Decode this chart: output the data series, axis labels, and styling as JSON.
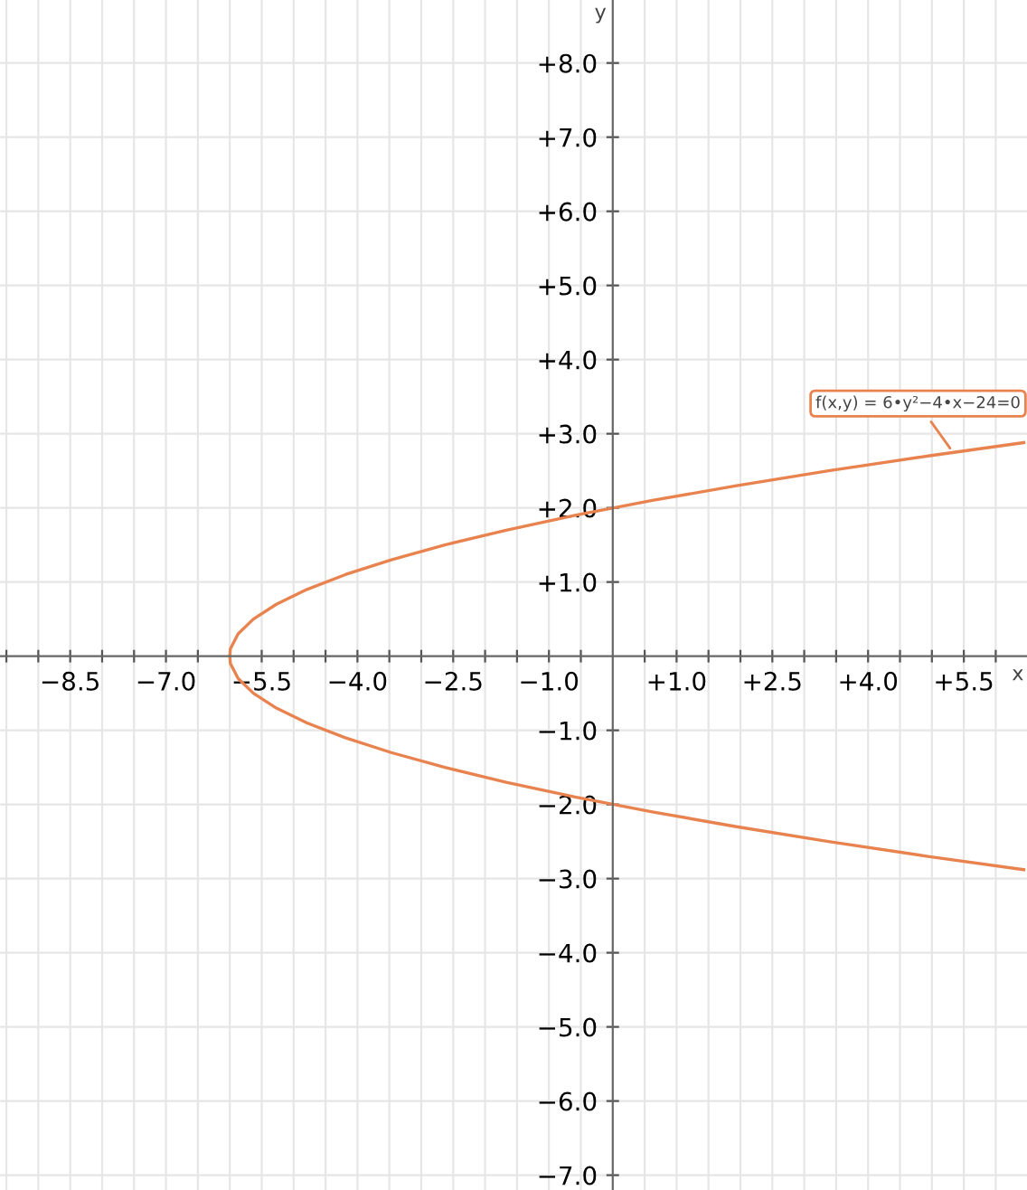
{
  "chart_data": {
    "type": "line",
    "xlabel": "x",
    "ylabel": "y",
    "series": [
      {
        "color": "#e8834f",
        "x": [
          6.44,
          4.94,
          3.38,
          1.94,
          0.62,
          -0.59,
          -1.67,
          -2.63,
          -3.47,
          -4.19,
          -4.79,
          -5.27,
          -5.63,
          -5.87,
          -5.99,
          -6,
          -5.99,
          -5.87,
          -5.63,
          -5.27,
          -4.79,
          -4.19,
          -3.47,
          -2.63,
          -1.67,
          -0.59,
          0.62,
          1.94,
          3.38,
          4.94,
          6.44
        ],
        "values": [
          -2.88,
          -2.7,
          -2.5,
          -2.3,
          -2.1,
          -1.9,
          -1.7,
          -1.5,
          -1.3,
          -1.1,
          -0.9,
          -0.7,
          -0.5,
          -0.3,
          -0.1,
          0,
          0.1,
          0.3,
          0.5,
          0.7,
          0.9,
          1.1,
          1.3,
          1.5,
          1.7,
          1.9,
          2.1,
          2.3,
          2.5,
          2.7,
          2.88
        ]
      }
    ],
    "annotations": [
      {
        "text": "f(x,y) = 6•y²−4•x−24=0",
        "x": 5.33,
        "y": 2.75
      }
    ],
    "xlim": [
      -9.6,
      6.49
    ],
    "ylim": [
      -7.2,
      8.85
    ],
    "xticks": [
      {
        "value": -9.5,
        "label": null
      },
      {
        "value": -9,
        "label": null
      },
      {
        "value": -8.5,
        "label": "−8.5"
      },
      {
        "value": -8,
        "label": null
      },
      {
        "value": -7.5,
        "label": null
      },
      {
        "value": -7,
        "label": "−7.0"
      },
      {
        "value": -6.5,
        "label": null
      },
      {
        "value": -6,
        "label": null
      },
      {
        "value": -5.5,
        "label": "−5.5"
      },
      {
        "value": -5,
        "label": null
      },
      {
        "value": -4.5,
        "label": null
      },
      {
        "value": -4,
        "label": "−4.0"
      },
      {
        "value": -3.5,
        "label": null
      },
      {
        "value": -3,
        "label": null
      },
      {
        "value": -2.5,
        "label": "−2.5"
      },
      {
        "value": -2,
        "label": null
      },
      {
        "value": -1.5,
        "label": null
      },
      {
        "value": -1,
        "label": "−1.0"
      },
      {
        "value": -0.5,
        "label": null
      },
      {
        "value": 0.5,
        "label": null
      },
      {
        "value": 1,
        "label": "+1.0"
      },
      {
        "value": 1.5,
        "label": null
      },
      {
        "value": 2,
        "label": null
      },
      {
        "value": 2.5,
        "label": "+2.5"
      },
      {
        "value": 3,
        "label": null
      },
      {
        "value": 3.5,
        "label": null
      },
      {
        "value": 4,
        "label": "+4.0"
      },
      {
        "value": 4.5,
        "label": null
      },
      {
        "value": 5,
        "label": null
      },
      {
        "value": 5.5,
        "label": "+5.5"
      },
      {
        "value": 6,
        "label": null
      }
    ],
    "yticks": [
      {
        "value": -7,
        "label": "−7.0"
      },
      {
        "value": -6,
        "label": "−6.0"
      },
      {
        "value": -5,
        "label": "−5.0"
      },
      {
        "value": -4,
        "label": "−4.0"
      },
      {
        "value": -3,
        "label": "−3.0"
      },
      {
        "value": -2,
        "label": "−2.0"
      },
      {
        "value": -1,
        "label": "−1.0"
      },
      {
        "value": 1,
        "label": "+1.0"
      },
      {
        "value": 2,
        "label": "+2.0"
      },
      {
        "value": 3,
        "label": "+3.0"
      },
      {
        "value": 4,
        "label": "+4.0"
      },
      {
        "value": 5,
        "label": "+5.0"
      },
      {
        "value": 6,
        "label": "+6.0"
      },
      {
        "value": 7,
        "label": "+7.0"
      },
      {
        "value": 8,
        "label": "+8.0"
      }
    ],
    "grid": true,
    "marker": "none",
    "line_style": "solid"
  }
}
